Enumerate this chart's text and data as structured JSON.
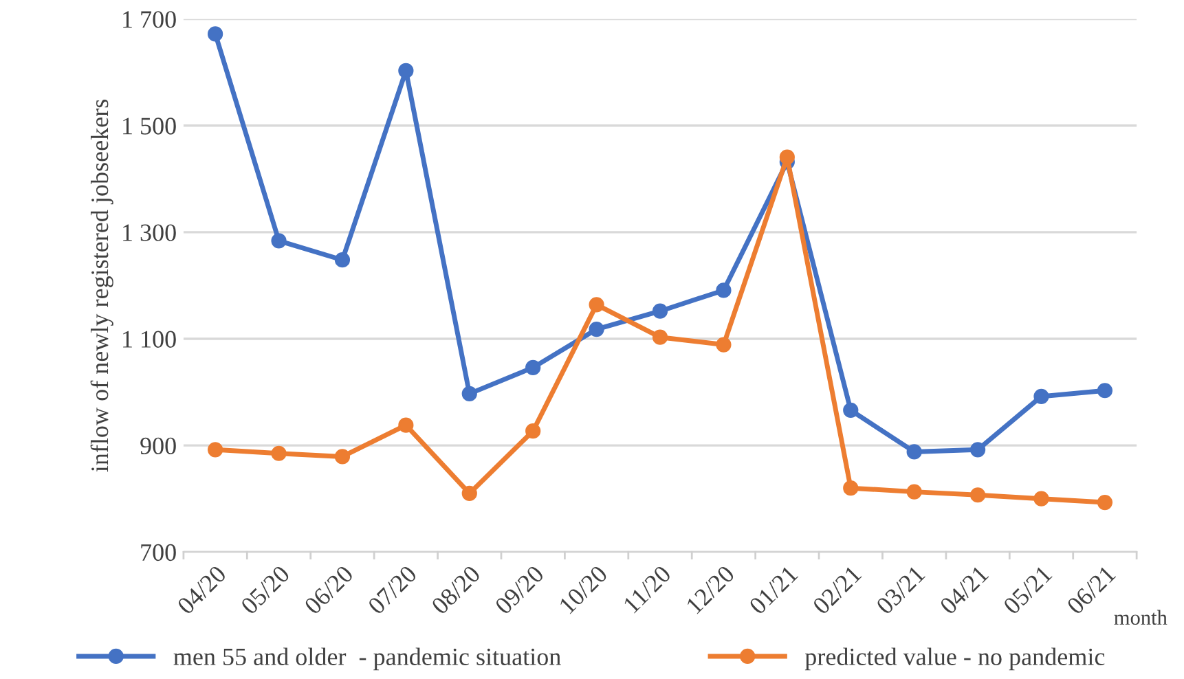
{
  "chart_data": {
    "type": "line",
    "ylabel": "inflow of newly registered jobseekers",
    "xlabel": "month",
    "categories": [
      "04/20",
      "05/20",
      "06/20",
      "07/20",
      "08/20",
      "09/20",
      "10/20",
      "11/20",
      "12/20",
      "01/21",
      "02/21",
      "03/21",
      "04/21",
      "05/21",
      "06/21"
    ],
    "series": [
      {
        "name": "men 55 and older  - pandemic situation",
        "color": "#4472c4",
        "values": [
          1672,
          1284,
          1248,
          1603,
          997,
          1046,
          1118,
          1152,
          1191,
          1432,
          966,
          888,
          892,
          992,
          1003
        ]
      },
      {
        "name": "predicted value - no pandemic",
        "color": "#ed7d31",
        "values": [
          892,
          885,
          879,
          938,
          810,
          927,
          1164,
          1103,
          1089,
          1441,
          820,
          813,
          807,
          800,
          793
        ]
      }
    ],
    "ylim": [
      700,
      1700
    ],
    "yticks": [
      {
        "value": 700,
        "label": "700"
      },
      {
        "value": 900,
        "label": "900"
      },
      {
        "value": 1100,
        "label": "1 100"
      },
      {
        "value": 1300,
        "label": "1 300"
      },
      {
        "value": 1500,
        "label": "1 500"
      },
      {
        "value": 1700,
        "label": "1 700"
      }
    ],
    "grid": "y",
    "legend": "bottom",
    "marker": "circle",
    "line_style": "solid"
  }
}
